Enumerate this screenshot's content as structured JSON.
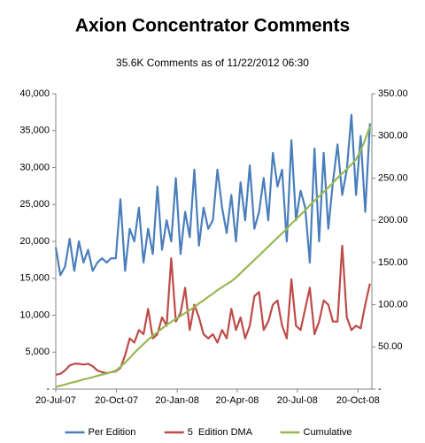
{
  "chart_data": {
    "type": "line",
    "title": "Axion Concentrator Comments",
    "subtitle": "35.6K Comments as of 11/22/2012 06:30",
    "x": [
      "2007-07-20",
      "2007-07-27",
      "2007-08-03",
      "2007-08-10",
      "2007-08-17",
      "2007-08-24",
      "2007-08-31",
      "2007-09-07",
      "2007-09-14",
      "2007-09-21",
      "2007-09-28",
      "2007-10-05",
      "2007-10-12",
      "2007-10-19",
      "2007-10-26",
      "2007-11-02",
      "2007-11-09",
      "2007-11-16",
      "2007-11-23",
      "2007-11-30",
      "2007-12-07",
      "2007-12-14",
      "2007-12-21",
      "2007-12-28",
      "2008-01-04",
      "2008-01-11",
      "2008-01-18",
      "2008-01-25",
      "2008-02-01",
      "2008-02-08",
      "2008-02-15",
      "2008-02-22",
      "2008-02-29",
      "2008-03-07",
      "2008-03-14",
      "2008-03-21",
      "2008-03-28",
      "2008-04-04",
      "2008-04-11",
      "2008-04-18",
      "2008-04-25",
      "2008-05-02",
      "2008-05-09",
      "2008-05-16",
      "2008-05-23",
      "2008-05-30",
      "2008-06-06",
      "2008-06-13",
      "2008-06-20",
      "2008-06-27",
      "2008-07-04",
      "2008-07-11",
      "2008-07-18",
      "2008-07-25",
      "2008-08-01",
      "2008-08-08",
      "2008-08-15",
      "2008-08-22",
      "2008-08-29",
      "2008-09-05",
      "2008-09-12",
      "2008-09-19",
      "2008-09-26",
      "2008-10-03",
      "2008-10-10",
      "2008-10-17",
      "2008-10-24",
      "2008-10-31",
      "2008-11-07"
    ],
    "xlim": [
      "2007-07-20",
      "2008-11-10"
    ],
    "xticks": [
      {
        "value": "2007-07-20",
        "label": "20-Jul-07"
      },
      {
        "value": "2007-10-20",
        "label": "20-Oct-07"
      },
      {
        "value": "2008-01-20",
        "label": "20-Jan-08"
      },
      {
        "value": "2008-04-20",
        "label": "20-Apr-08"
      },
      {
        "value": "2008-07-20",
        "label": "20-Jul-08"
      },
      {
        "value": "2008-10-20",
        "label": "20-Oct-08"
      }
    ],
    "ylim": [
      0,
      40000
    ],
    "yticks": [
      {
        "value": 0,
        "label": "-"
      },
      {
        "value": 5000,
        "label": "5,000"
      },
      {
        "value": 10000,
        "label": "10,000"
      },
      {
        "value": 15000,
        "label": "15,000"
      },
      {
        "value": 20000,
        "label": "20,000"
      },
      {
        "value": 25000,
        "label": "25,000"
      },
      {
        "value": 30000,
        "label": "30,000"
      },
      {
        "value": 35000,
        "label": "35,000"
      },
      {
        "value": 40000,
        "label": "40,000"
      }
    ],
    "y2lim": [
      0,
      350
    ],
    "y2ticks": [
      {
        "value": 0,
        "label": "-"
      },
      {
        "value": 50,
        "label": "50.00"
      },
      {
        "value": 100,
        "label": "100.00"
      },
      {
        "value": 150,
        "label": "150.00"
      },
      {
        "value": 200,
        "label": "200.00"
      },
      {
        "value": 250,
        "label": "250.00"
      },
      {
        "value": 300,
        "label": "300.00"
      },
      {
        "value": 350,
        "label": "350.00"
      }
    ],
    "legend": "bottom",
    "series": [
      {
        "name": "Per Edition",
        "color": "#4a7ebb",
        "axis": "y2",
        "values": [
          168,
          135,
          145,
          178,
          140,
          175,
          150,
          165,
          140,
          150,
          155,
          150,
          155,
          155,
          225,
          140,
          190,
          175,
          215,
          150,
          190,
          160,
          240,
          165,
          200,
          175,
          250,
          160,
          210,
          180,
          260,
          170,
          215,
          190,
          200,
          260,
          215,
          185,
          230,
          175,
          245,
          200,
          265,
          190,
          210,
          250,
          200,
          280,
          240,
          260,
          175,
          295,
          200,
          235,
          215,
          150,
          285,
          175,
          280,
          190,
          245,
          290,
          230,
          260,
          325,
          230,
          300,
          210,
          315
        ]
      },
      {
        "name": "5  Edition DMA",
        "color": "#be4b48",
        "axis": "y2",
        "values": [
          17,
          18,
          22,
          28,
          30,
          30,
          29,
          30,
          27,
          22,
          20,
          19,
          20,
          21,
          25,
          40,
          60,
          55,
          70,
          65,
          95,
          60,
          65,
          85,
          75,
          155,
          80,
          90,
          120,
          70,
          100,
          85,
          65,
          60,
          65,
          55,
          70,
          60,
          95,
          70,
          85,
          60,
          75,
          110,
          115,
          70,
          80,
          100,
          105,
          75,
          60,
          130,
          75,
          70,
          95,
          120,
          65,
          80,
          105,
          100,
          80,
          80,
          170,
          85,
          70,
          75,
          72,
          100,
          125
        ]
      },
      {
        "name": "Cumulative",
        "color": "#98b954",
        "values": [
          300,
          450,
          600,
          800,
          950,
          1100,
          1300,
          1450,
          1600,
          1800,
          1950,
          2100,
          2300,
          2500,
          3000,
          3600,
          4200,
          4900,
          5500,
          6100,
          6700,
          7200,
          7700,
          8200,
          8700,
          9100,
          9500,
          9900,
          10300,
          10700,
          11100,
          11600,
          12000,
          12500,
          12900,
          13400,
          13800,
          14200,
          14600,
          15100,
          15700,
          16300,
          16900,
          17500,
          18100,
          18700,
          19300,
          19900,
          20500,
          21100,
          21700,
          22400,
          23000,
          23600,
          24200,
          24900,
          25500,
          26100,
          26700,
          27300,
          27900,
          28600,
          29200,
          29800,
          30400,
          31100,
          32300,
          33800,
          35600
        ]
      }
    ]
  }
}
